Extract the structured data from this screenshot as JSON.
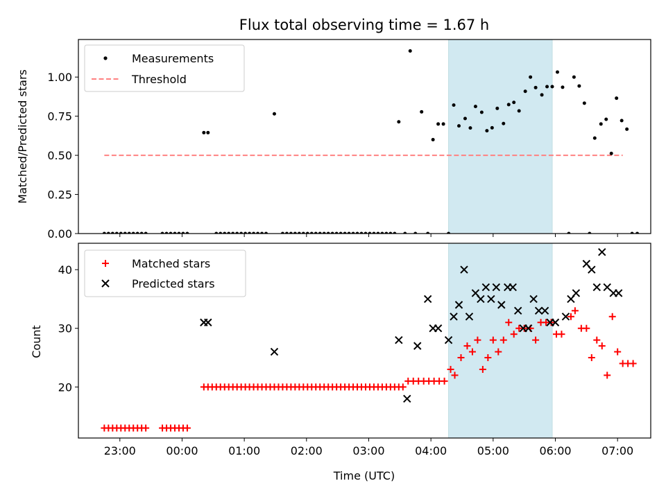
{
  "title": "Flux total observing time = 1.67 h",
  "xlabel": "Time (UTC)",
  "colors": {
    "measurement": "#000000",
    "threshold": "#ff8080",
    "matched": "#ff0000",
    "predicted": "#000000",
    "highlight": "#add8e6"
  },
  "chart_data": [
    {
      "type": "scatter",
      "ylabel": "Matched/Predicted stars",
      "ylim": [
        0,
        1.24
      ],
      "yticks": [
        "0.00",
        "0.25",
        "0.50",
        "0.75",
        "1.00"
      ],
      "xlim": [
        "22:20",
        "07:32"
      ],
      "xticks": [
        "23:00",
        "00:00",
        "01:00",
        "02:00",
        "03:00",
        "04:00",
        "05:00",
        "06:00",
        "07:00"
      ],
      "highlight_span": [
        "04:17",
        "05:57"
      ],
      "legend": {
        "placement": "top-left",
        "entries": [
          "Measurements",
          "Threshold"
        ]
      },
      "threshold": {
        "name": "Threshold",
        "value": 0.5,
        "x": [
          "22:45",
          "07:05"
        ]
      },
      "series": [
        {
          "name": "Measurements",
          "points": [
            [
              "22:45",
              0
            ],
            [
              "22:49",
              0
            ],
            [
              "22:53",
              0
            ],
            [
              "22:57",
              0
            ],
            [
              "23:01",
              0
            ],
            [
              "23:05",
              0
            ],
            [
              "23:09",
              0
            ],
            [
              "23:13",
              0
            ],
            [
              "23:17",
              0
            ],
            [
              "23:21",
              0
            ],
            [
              "23:25",
              0
            ],
            [
              "23:41",
              0
            ],
            [
              "23:45",
              0
            ],
            [
              "23:49",
              0
            ],
            [
              "23:53",
              0
            ],
            [
              "23:57",
              0
            ],
            [
              "00:01",
              0
            ],
            [
              "00:05",
              0
            ],
            [
              "00:21",
              0.645
            ],
            [
              "00:25",
              0.645
            ],
            [
              "00:33",
              0
            ],
            [
              "00:37",
              0
            ],
            [
              "00:41",
              0
            ],
            [
              "00:45",
              0
            ],
            [
              "00:49",
              0
            ],
            [
              "00:53",
              0
            ],
            [
              "00:57",
              0
            ],
            [
              "01:01",
              0
            ],
            [
              "01:05",
              0
            ],
            [
              "01:09",
              0
            ],
            [
              "01:13",
              0
            ],
            [
              "01:17",
              0
            ],
            [
              "01:21",
              0
            ],
            [
              "01:29",
              0.765
            ],
            [
              "01:37",
              0
            ],
            [
              "01:41",
              0
            ],
            [
              "01:45",
              0
            ],
            [
              "01:49",
              0
            ],
            [
              "01:53",
              0
            ],
            [
              "01:57",
              0
            ],
            [
              "02:01",
              0
            ],
            [
              "02:05",
              0
            ],
            [
              "02:09",
              0
            ],
            [
              "02:13",
              0
            ],
            [
              "02:17",
              0
            ],
            [
              "02:21",
              0
            ],
            [
              "02:25",
              0
            ],
            [
              "02:29",
              0
            ],
            [
              "02:33",
              0
            ],
            [
              "02:37",
              0
            ],
            [
              "02:41",
              0
            ],
            [
              "02:45",
              0
            ],
            [
              "02:49",
              0
            ],
            [
              "02:53",
              0
            ],
            [
              "02:57",
              0
            ],
            [
              "03:01",
              0
            ],
            [
              "03:05",
              0
            ],
            [
              "03:09",
              0
            ],
            [
              "03:13",
              0
            ],
            [
              "03:17",
              0
            ],
            [
              "03:21",
              0
            ],
            [
              "03:25",
              0
            ],
            [
              "03:29",
              0.714
            ],
            [
              "03:35",
              0
            ],
            [
              "03:40",
              1.167
            ],
            [
              "03:45",
              0
            ],
            [
              "03:51",
              0.778
            ],
            [
              "03:57",
              0
            ],
            [
              "04:02",
              0.6
            ],
            [
              "04:07",
              0.7
            ],
            [
              "04:12",
              0.7
            ],
            [
              "04:17",
              0
            ],
            [
              "04:22",
              0.821
            ],
            [
              "04:27",
              0.688
            ],
            [
              "04:33",
              0.735
            ],
            [
              "04:38",
              0.675
            ],
            [
              "04:43",
              0.812
            ],
            [
              "04:49",
              0.775
            ],
            [
              "04:54",
              0.657
            ],
            [
              "04:59",
              0.676
            ],
            [
              "05:04",
              0.8
            ],
            [
              "05:10",
              0.703
            ],
            [
              "05:15",
              0.824
            ],
            [
              "05:20",
              0.838
            ],
            [
              "05:25",
              0.784
            ],
            [
              "05:31",
              0.909
            ],
            [
              "05:36",
              1.0
            ],
            [
              "05:41",
              0.933
            ],
            [
              "05:47",
              0.886
            ],
            [
              "05:52",
              0.939
            ],
            [
              "05:57",
              0.939
            ],
            [
              "06:02",
              1.032
            ],
            [
              "06:07",
              0.935
            ],
            [
              "06:13",
              0
            ],
            [
              "06:18",
              1.0
            ],
            [
              "06:23",
              0.943
            ],
            [
              "06:28",
              0.833
            ],
            [
              "06:33",
              0
            ],
            [
              "06:38",
              0.61
            ],
            [
              "06:44",
              0.7
            ],
            [
              "06:49",
              0.73
            ],
            [
              "06:54",
              0.512
            ],
            [
              "06:59",
              0.865
            ],
            [
              "07:04",
              0.722
            ],
            [
              "07:09",
              0.667
            ],
            [
              "07:14",
              0
            ],
            [
              "07:19",
              0
            ]
          ]
        }
      ]
    },
    {
      "type": "scatter",
      "ylabel": "Count",
      "ylim": [
        11.3,
        44.5
      ],
      "yticks": [
        "20",
        "30",
        "40"
      ],
      "xlim": [
        "22:20",
        "07:32"
      ],
      "xticks": [
        "23:00",
        "00:00",
        "01:00",
        "02:00",
        "03:00",
        "04:00",
        "05:00",
        "06:00",
        "07:00"
      ],
      "highlight_span": [
        "04:17",
        "05:57"
      ],
      "legend": {
        "placement": "top-left",
        "entries": [
          "Matched stars",
          "Predicted stars"
        ]
      },
      "series": [
        {
          "name": "Matched stars",
          "marker": "plus",
          "points": [
            [
              "22:45",
              13
            ],
            [
              "22:49",
              13
            ],
            [
              "22:53",
              13
            ],
            [
              "22:57",
              13
            ],
            [
              "23:01",
              13
            ],
            [
              "23:05",
              13
            ],
            [
              "23:09",
              13
            ],
            [
              "23:13",
              13
            ],
            [
              "23:17",
              13
            ],
            [
              "23:21",
              13
            ],
            [
              "23:25",
              13
            ],
            [
              "23:41",
              13
            ],
            [
              "23:45",
              13
            ],
            [
              "23:49",
              13
            ],
            [
              "23:53",
              13
            ],
            [
              "23:57",
              13
            ],
            [
              "00:01",
              13
            ],
            [
              "00:05",
              13
            ],
            [
              "00:21",
              20
            ],
            [
              "00:25",
              20
            ],
            [
              "00:29",
              20
            ],
            [
              "00:33",
              20
            ],
            [
              "00:37",
              20
            ],
            [
              "00:41",
              20
            ],
            [
              "00:45",
              20
            ],
            [
              "00:49",
              20
            ],
            [
              "00:53",
              20
            ],
            [
              "00:57",
              20
            ],
            [
              "01:01",
              20
            ],
            [
              "01:05",
              20
            ],
            [
              "01:09",
              20
            ],
            [
              "01:13",
              20
            ],
            [
              "01:17",
              20
            ],
            [
              "01:21",
              20
            ],
            [
              "01:25",
              20
            ],
            [
              "01:29",
              20
            ],
            [
              "01:33",
              20
            ],
            [
              "01:37",
              20
            ],
            [
              "01:41",
              20
            ],
            [
              "01:45",
              20
            ],
            [
              "01:49",
              20
            ],
            [
              "01:53",
              20
            ],
            [
              "01:57",
              20
            ],
            [
              "02:01",
              20
            ],
            [
              "02:05",
              20
            ],
            [
              "02:09",
              20
            ],
            [
              "02:13",
              20
            ],
            [
              "02:17",
              20
            ],
            [
              "02:21",
              20
            ],
            [
              "02:25",
              20
            ],
            [
              "02:29",
              20
            ],
            [
              "02:33",
              20
            ],
            [
              "02:37",
              20
            ],
            [
              "02:41",
              20
            ],
            [
              "02:45",
              20
            ],
            [
              "02:49",
              20
            ],
            [
              "02:53",
              20
            ],
            [
              "02:57",
              20
            ],
            [
              "03:01",
              20
            ],
            [
              "03:05",
              20
            ],
            [
              "03:09",
              20
            ],
            [
              "03:13",
              20
            ],
            [
              "03:17",
              20
            ],
            [
              "03:21",
              20
            ],
            [
              "03:25",
              20
            ],
            [
              "03:29",
              20
            ],
            [
              "03:33",
              20
            ],
            [
              "03:38",
              21
            ],
            [
              "03:43",
              21
            ],
            [
              "03:48",
              21
            ],
            [
              "03:53",
              21
            ],
            [
              "03:58",
              21
            ],
            [
              "04:03",
              21
            ],
            [
              "04:08",
              21
            ],
            [
              "04:13",
              21
            ],
            [
              "04:19",
              23
            ],
            [
              "04:23",
              22
            ],
            [
              "04:29",
              25
            ],
            [
              "04:35",
              27
            ],
            [
              "04:40",
              26
            ],
            [
              "04:45",
              28
            ],
            [
              "04:50",
              23
            ],
            [
              "04:55",
              25
            ],
            [
              "05:00",
              28
            ],
            [
              "05:05",
              26
            ],
            [
              "05:10",
              28
            ],
            [
              "05:15",
              31
            ],
            [
              "05:20",
              29
            ],
            [
              "05:25",
              30
            ],
            [
              "05:30",
              30
            ],
            [
              "05:36",
              30
            ],
            [
              "05:41",
              28
            ],
            [
              "05:46",
              31
            ],
            [
              "05:51",
              31
            ],
            [
              "05:56",
              31
            ],
            [
              "06:01",
              29
            ],
            [
              "06:06",
              29
            ],
            [
              "06:15",
              32
            ],
            [
              "06:19",
              33
            ],
            [
              "06:25",
              30
            ],
            [
              "06:30",
              30
            ],
            [
              "06:35",
              25
            ],
            [
              "06:40",
              28
            ],
            [
              "06:45",
              27
            ],
            [
              "06:50",
              22
            ],
            [
              "06:55",
              32
            ],
            [
              "07:00",
              26
            ],
            [
              "07:05",
              24
            ],
            [
              "07:10",
              24
            ],
            [
              "07:15",
              24
            ]
          ]
        },
        {
          "name": "Predicted stars",
          "marker": "x",
          "points": [
            [
              "00:21",
              31
            ],
            [
              "00:25",
              31
            ],
            [
              "01:29",
              26
            ],
            [
              "03:29",
              28
            ],
            [
              "03:37",
              18
            ],
            [
              "03:47",
              27
            ],
            [
              "03:57",
              35
            ],
            [
              "04:02",
              30
            ],
            [
              "04:07",
              30
            ],
            [
              "04:17",
              28
            ],
            [
              "04:22",
              32
            ],
            [
              "04:27",
              34
            ],
            [
              "04:32",
              40
            ],
            [
              "04:37",
              32
            ],
            [
              "04:43",
              36
            ],
            [
              "04:48",
              35
            ],
            [
              "04:53",
              37
            ],
            [
              "04:58",
              35
            ],
            [
              "05:03",
              37
            ],
            [
              "05:08",
              34
            ],
            [
              "05:14",
              37
            ],
            [
              "05:19",
              37
            ],
            [
              "05:24",
              33
            ],
            [
              "05:29",
              30
            ],
            [
              "05:34",
              30
            ],
            [
              "05:39",
              35
            ],
            [
              "05:44",
              33
            ],
            [
              "05:50",
              33
            ],
            [
              "05:55",
              31
            ],
            [
              "06:00",
              31
            ],
            [
              "06:10",
              32
            ],
            [
              "06:15",
              35
            ],
            [
              "06:20",
              36
            ],
            [
              "06:30",
              41
            ],
            [
              "06:35",
              40
            ],
            [
              "06:40",
              37
            ],
            [
              "06:45",
              43
            ],
            [
              "06:50",
              37
            ],
            [
              "06:56",
              36
            ],
            [
              "07:01",
              36
            ]
          ]
        }
      ]
    }
  ]
}
